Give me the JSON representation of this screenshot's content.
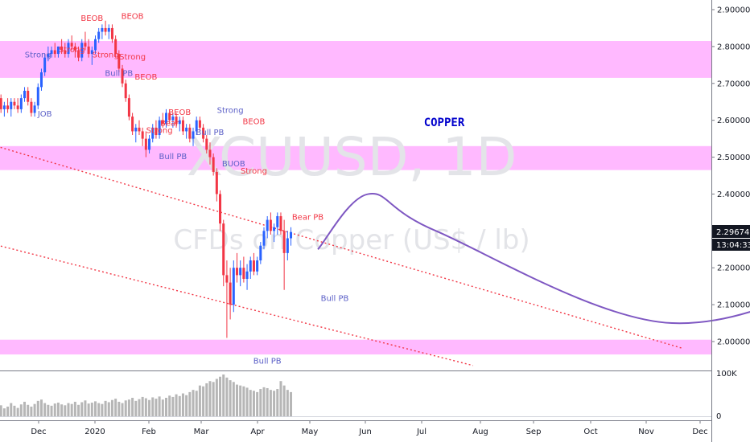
{
  "chart_data": {
    "type": "candlestick",
    "symbol": "XCUUSD, 1D",
    "title": "COPPER",
    "watermark": {
      "symbol": "XCUUSD, 1D",
      "description": "CFDs on Copper (US$ / lb)"
    },
    "x_axis": {
      "labels": [
        "Dec",
        "2020",
        "Feb",
        "Mar",
        "Apr",
        "May",
        "Jun",
        "Jul",
        "Aug",
        "Sep",
        "Oct",
        "Nov",
        "Dec"
      ]
    },
    "y_axis": {
      "labels": [
        "2.90000",
        "2.80000",
        "2.70000",
        "2.60000",
        "2.50000",
        "2.40000",
        "2.30000",
        "2.20000",
        "2.10000",
        "2.00000"
      ],
      "range": [
        1.945,
        2.915
      ]
    },
    "last_price": {
      "value": "2.29674",
      "countdown": "13:04:33",
      "color": "#131722"
    },
    "volume_axis": {
      "labels": [
        "100K",
        "0"
      ]
    },
    "zones": [
      {
        "from": 2.715,
        "to": 2.815,
        "color": "#ff80ff"
      },
      {
        "from": 2.465,
        "to": 2.53,
        "color": "#ff80ff"
      },
      {
        "from": 1.965,
        "to": 2.005,
        "color": "#ff80ff"
      }
    ],
    "candles": [
      [
        2.67,
        2.68,
        2.64,
        2.66
      ],
      [
        2.66,
        2.67,
        2.62,
        2.63
      ],
      [
        2.63,
        2.65,
        2.61,
        2.64
      ],
      [
        2.64,
        2.66,
        2.62,
        2.63
      ],
      [
        2.63,
        2.66,
        2.61,
        2.65
      ],
      [
        2.65,
        2.66,
        2.63,
        2.64
      ],
      [
        2.64,
        2.66,
        2.62,
        2.63
      ],
      [
        2.63,
        2.67,
        2.62,
        2.66
      ],
      [
        2.66,
        2.69,
        2.65,
        2.68
      ],
      [
        2.68,
        2.69,
        2.64,
        2.65
      ],
      [
        2.65,
        2.66,
        2.61,
        2.62
      ],
      [
        2.62,
        2.65,
        2.61,
        2.64
      ],
      [
        2.64,
        2.7,
        2.63,
        2.69
      ],
      [
        2.69,
        2.74,
        2.68,
        2.73
      ],
      [
        2.73,
        2.78,
        2.72,
        2.77
      ],
      [
        2.77,
        2.8,
        2.76,
        2.78
      ],
      [
        2.78,
        2.8,
        2.77,
        2.79
      ],
      [
        2.79,
        2.81,
        2.77,
        2.78
      ],
      [
        2.78,
        2.8,
        2.77,
        2.8
      ],
      [
        2.8,
        2.82,
        2.78,
        2.79
      ],
      [
        2.79,
        2.81,
        2.77,
        2.78
      ],
      [
        2.78,
        2.82,
        2.77,
        2.81
      ],
      [
        2.81,
        2.83,
        2.79,
        2.8
      ],
      [
        2.8,
        2.81,
        2.77,
        2.79
      ],
      [
        2.79,
        2.8,
        2.76,
        2.77
      ],
      [
        2.77,
        2.82,
        2.76,
        2.81
      ],
      [
        2.81,
        2.84,
        2.79,
        2.8
      ],
      [
        2.8,
        2.82,
        2.77,
        2.78
      ],
      [
        2.78,
        2.8,
        2.75,
        2.79
      ],
      [
        2.79,
        2.83,
        2.78,
        2.82
      ],
      [
        2.82,
        2.85,
        2.81,
        2.84
      ],
      [
        2.84,
        2.86,
        2.82,
        2.85
      ],
      [
        2.85,
        2.87,
        2.83,
        2.84
      ],
      [
        2.84,
        2.86,
        2.82,
        2.85
      ],
      [
        2.85,
        2.86,
        2.81,
        2.82
      ],
      [
        2.82,
        2.83,
        2.77,
        2.78
      ],
      [
        2.78,
        2.79,
        2.73,
        2.74
      ],
      [
        2.74,
        2.75,
        2.69,
        2.7
      ],
      [
        2.7,
        2.71,
        2.65,
        2.66
      ],
      [
        2.66,
        2.67,
        2.6,
        2.61
      ],
      [
        2.61,
        2.62,
        2.56,
        2.57
      ],
      [
        2.57,
        2.59,
        2.54,
        2.58
      ],
      [
        2.58,
        2.6,
        2.56,
        2.57
      ],
      [
        2.57,
        2.58,
        2.53,
        2.55
      ],
      [
        2.55,
        2.57,
        2.5,
        2.52
      ],
      [
        2.52,
        2.56,
        2.51,
        2.55
      ],
      [
        2.55,
        2.59,
        2.54,
        2.58
      ],
      [
        2.58,
        2.6,
        2.55,
        2.56
      ],
      [
        2.56,
        2.61,
        2.55,
        2.6
      ],
      [
        2.6,
        2.62,
        2.58,
        2.59
      ],
      [
        2.59,
        2.63,
        2.58,
        2.62
      ],
      [
        2.62,
        2.63,
        2.59,
        2.6
      ],
      [
        2.6,
        2.62,
        2.58,
        2.61
      ],
      [
        2.61,
        2.62,
        2.58,
        2.59
      ],
      [
        2.59,
        2.61,
        2.57,
        2.6
      ],
      [
        2.6,
        2.61,
        2.56,
        2.57
      ],
      [
        2.57,
        2.59,
        2.55,
        2.58
      ],
      [
        2.58,
        2.59,
        2.54,
        2.55
      ],
      [
        2.55,
        2.58,
        2.53,
        2.57
      ],
      [
        2.57,
        2.61,
        2.56,
        2.6
      ],
      [
        2.6,
        2.61,
        2.57,
        2.58
      ],
      [
        2.58,
        2.59,
        2.54,
        2.55
      ],
      [
        2.55,
        2.56,
        2.51,
        2.52
      ],
      [
        2.52,
        2.54,
        2.48,
        2.5
      ],
      [
        2.5,
        2.51,
        2.45,
        2.46
      ],
      [
        2.46,
        2.47,
        2.38,
        2.4
      ],
      [
        2.4,
        2.41,
        2.3,
        2.32
      ],
      [
        2.32,
        2.33,
        2.15,
        2.18
      ],
      [
        2.18,
        2.22,
        2.01,
        2.16
      ],
      [
        2.16,
        2.2,
        2.06,
        2.1
      ],
      [
        2.1,
        2.22,
        2.08,
        2.2
      ],
      [
        2.2,
        2.24,
        2.16,
        2.18
      ],
      [
        2.18,
        2.22,
        2.15,
        2.2
      ],
      [
        2.2,
        2.23,
        2.16,
        2.17
      ],
      [
        2.17,
        2.21,
        2.14,
        2.19
      ],
      [
        2.19,
        2.23,
        2.17,
        2.22
      ],
      [
        2.22,
        2.24,
        2.18,
        2.19
      ],
      [
        2.19,
        2.23,
        2.18,
        2.22
      ],
      [
        2.22,
        2.27,
        2.21,
        2.26
      ],
      [
        2.26,
        2.31,
        2.25,
        2.3
      ],
      [
        2.3,
        2.34,
        2.28,
        2.33
      ],
      [
        2.33,
        2.35,
        2.29,
        2.3
      ],
      [
        2.3,
        2.32,
        2.27,
        2.31
      ],
      [
        2.31,
        2.35,
        2.29,
        2.34
      ],
      [
        2.34,
        2.35,
        2.29,
        2.3
      ],
      [
        2.3,
        2.33,
        2.14,
        2.24
      ],
      [
        2.24,
        2.3,
        2.22,
        2.28
      ],
      [
        2.28,
        2.31,
        2.26,
        2.297
      ]
    ],
    "volumes": [
      20,
      25,
      18,
      22,
      30,
      24,
      19,
      27,
      33,
      26,
      22,
      28,
      35,
      38,
      30,
      26,
      24,
      29,
      31,
      27,
      25,
      30,
      28,
      33,
      26,
      32,
      36,
      29,
      31,
      34,
      30,
      28,
      35,
      32,
      37,
      40,
      33,
      30,
      36,
      38,
      42,
      35,
      39,
      44,
      41,
      37,
      43,
      40,
      45,
      38,
      42,
      47,
      44,
      50,
      46,
      52,
      48,
      55,
      60,
      58,
      70,
      68,
      75,
      80,
      78,
      85,
      90,
      95,
      88,
      82,
      78,
      72,
      70,
      68,
      65,
      60,
      58,
      55,
      62,
      66,
      64,
      60,
      58,
      62,
      80,
      70,
      60,
      55
    ],
    "trendlines": [
      {
        "from": {
          "i": -6,
          "v": 2.545
        },
        "to": {
          "i": 203,
          "v": 1.982
        },
        "color": "#f23645"
      },
      {
        "from": {
          "i": -6,
          "v": 2.275
        },
        "to": {
          "i": 141,
          "v": 1.935
        },
        "color": "#f23645"
      }
    ],
    "projection": {
      "color": "#7e57c2",
      "points": [
        {
          "i": 95,
          "v": 2.25
        },
        {
          "i": 110,
          "v": 2.4
        },
        {
          "i": 130,
          "v": 2.3
        },
        {
          "i": 200,
          "v": 2.05
        },
        {
          "i": 260,
          "v": 2.25
        },
        {
          "i": 280,
          "v": 2.59
        }
      ]
    },
    "annotations": [
      {
        "text": "BEOB",
        "i": 28,
        "v": 2.87,
        "color": "#f23645"
      },
      {
        "text": "BEOB",
        "i": 40,
        "v": 2.875,
        "color": "#f23645"
      },
      {
        "text": "Strong",
        "i": 12,
        "v": 2.77,
        "color": "#5b5fc7"
      },
      {
        "text": "Strong",
        "i": 22,
        "v": 2.785,
        "color": "#f23645"
      },
      {
        "text": "Strong",
        "i": 32,
        "v": 2.77,
        "color": "#f23645"
      },
      {
        "text": "Strong",
        "i": 40,
        "v": 2.765,
        "color": "#f23645"
      },
      {
        "text": "Bull PB",
        "i": 36,
        "v": 2.72,
        "color": "#5b5fc7"
      },
      {
        "text": "BEOB",
        "i": 44,
        "v": 2.71,
        "color": "#f23645"
      },
      {
        "text": "JOB",
        "i": 14,
        "v": 2.61,
        "color": "#5b5fc7"
      },
      {
        "text": "BEOB",
        "i": 54,
        "v": 2.615,
        "color": "#f23645"
      },
      {
        "text": "Strong",
        "i": 69,
        "v": 2.62,
        "color": "#5b5fc7"
      },
      {
        "text": "BEOB",
        "i": 76,
        "v": 2.59,
        "color": "#f23645"
      },
      {
        "text": "Bear",
        "i": 51,
        "v": 2.585,
        "color": "#f23645"
      },
      {
        "text": "Strong",
        "i": 48,
        "v": 2.565,
        "color": "#f23645"
      },
      {
        "text": "Bull PB",
        "i": 63,
        "v": 2.56,
        "color": "#5b5fc7"
      },
      {
        "text": "Bull PB",
        "i": 52,
        "v": 2.495,
        "color": "#5b5fc7"
      },
      {
        "text": "BUOB",
        "i": 70,
        "v": 2.475,
        "color": "#5b5fc7"
      },
      {
        "text": "Strong",
        "i": 76,
        "v": 2.455,
        "color": "#f23645"
      },
      {
        "text": "Bear PB",
        "i": 92,
        "v": 2.33,
        "color": "#f23645"
      },
      {
        "text": "Bull PB",
        "i": 100,
        "v": 2.11,
        "color": "#5b5fc7"
      },
      {
        "text": "Bull PB",
        "i": 80,
        "v": 1.94,
        "color": "#5b5fc7"
      }
    ],
    "colors": {
      "up": "#2962ff",
      "down": "#f23645",
      "zone": "#ff80ff",
      "grid": "#f0f3fa",
      "axis": "#787b86",
      "title": "#0000cc"
    }
  }
}
